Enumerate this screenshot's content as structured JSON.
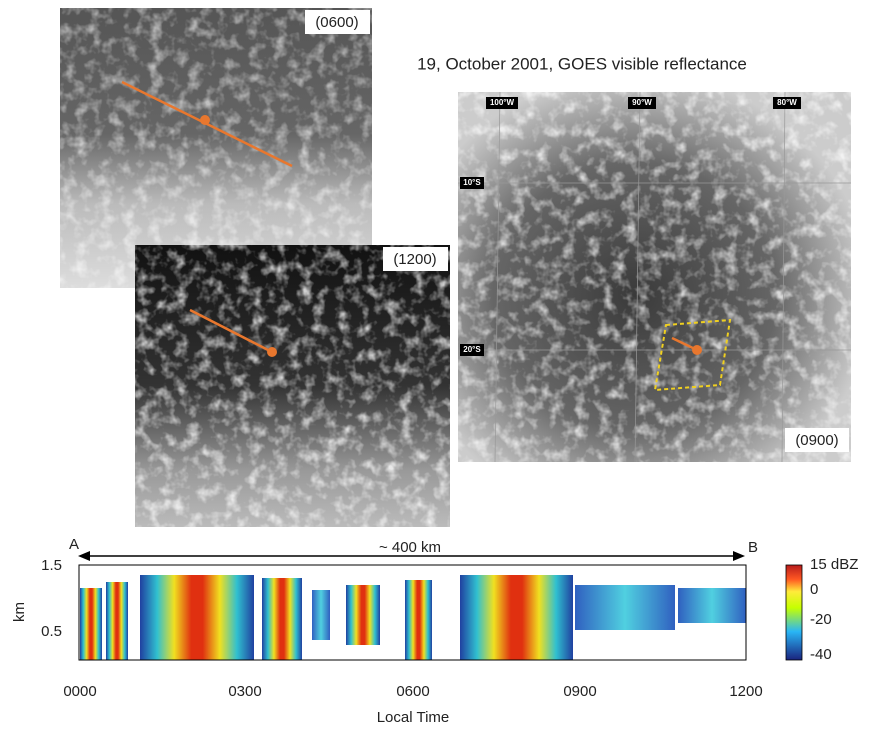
{
  "figure": {
    "title": "19, October 2001,  GOES visible reflectance",
    "panel_0600": {
      "label": "(0600)"
    },
    "panel_1200": {
      "label": "(1200)"
    },
    "panel_0900": {
      "label": "(0900)",
      "lon_labels": [
        "100°W",
        "90°W",
        "80°W"
      ],
      "lat_labels": [
        "10°S",
        "20°S"
      ]
    },
    "radar": {
      "start": "A",
      "end": "B",
      "distance": "~ 400 km",
      "y_label": "km",
      "y_ticks": [
        "1.5",
        "0.5"
      ],
      "x_label": "Local Time",
      "x_ticks": [
        "0000",
        "0300",
        "0600",
        "0900",
        "1200"
      ],
      "colorbar_ticks": [
        "15 dBZ",
        "0",
        "-20",
        "-40"
      ]
    }
  }
}
